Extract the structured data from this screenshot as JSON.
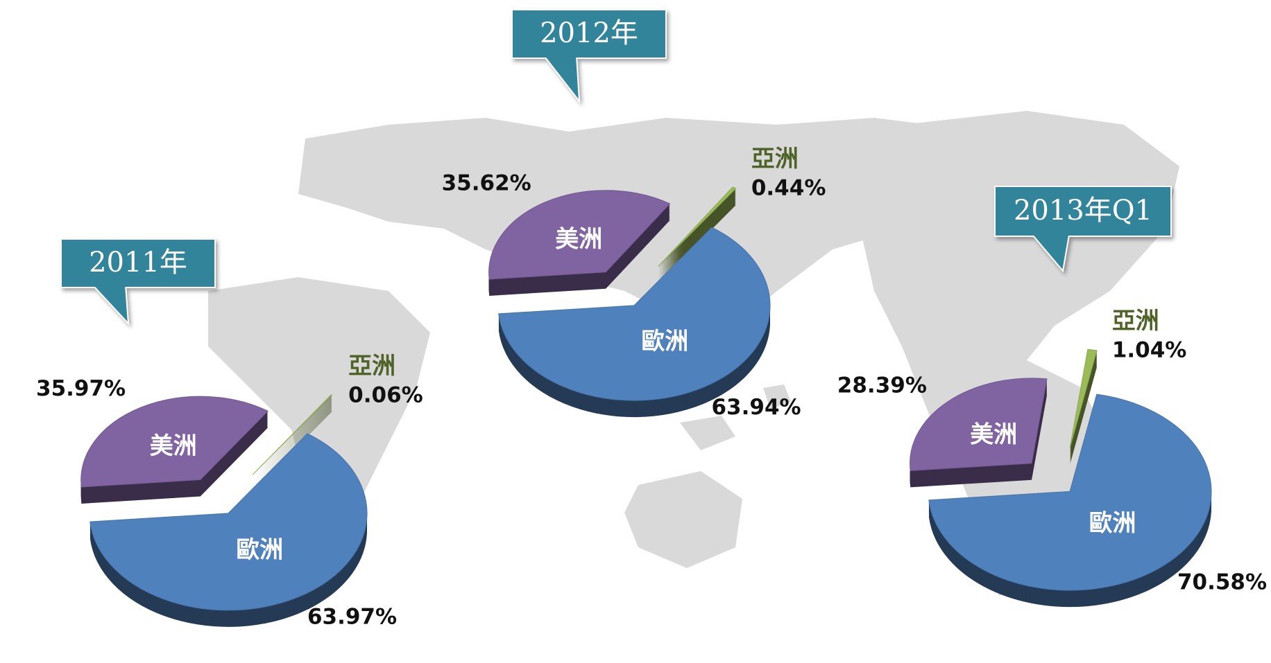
{
  "chart_data": [
    {
      "type": "pie",
      "title": "2011年",
      "categories": [
        "美洲",
        "亞洲",
        "歐洲"
      ],
      "values": [
        35.97,
        0.06,
        63.97
      ],
      "value_labels": [
        "35.97%",
        "0.06%",
        "63.97%"
      ],
      "colors": [
        "#8064a2",
        "#9bbb59",
        "#4f81bd"
      ]
    },
    {
      "type": "pie",
      "title": "2012年",
      "categories": [
        "美洲",
        "亞洲",
        "歐洲"
      ],
      "values": [
        35.62,
        0.44,
        63.94
      ],
      "value_labels": [
        "35.62%",
        "0.44%",
        "63.94%"
      ],
      "colors": [
        "#8064a2",
        "#9bbb59",
        "#4f81bd"
      ]
    },
    {
      "type": "pie",
      "title": "2013年Q1",
      "categories": [
        "美洲",
        "亞洲",
        "歐洲"
      ],
      "values": [
        28.39,
        1.04,
        70.58
      ],
      "value_labels": [
        "28.39%",
        "1.04%",
        "70.58%"
      ],
      "colors": [
        "#8064a2",
        "#9bbb59",
        "#4f81bd"
      ]
    }
  ]
}
